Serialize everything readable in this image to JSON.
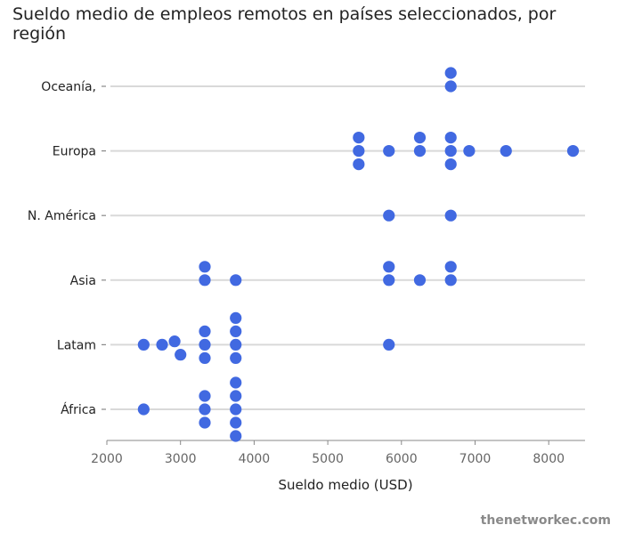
{
  "chart_data": {
    "type": "scatter",
    "title": "Sueldo medio de empleos remotos en países seleccionados, por región",
    "xlabel": "Sueldo medio (USD)",
    "ylabel": "",
    "xlim": [
      2000,
      8600
    ],
    "xticks": [
      2000,
      3000,
      4000,
      5000,
      6000,
      7000,
      8000
    ],
    "grid": "horizontal lines at each category",
    "categories": [
      "Oceanía,",
      "Europa",
      "N. América",
      "Asia",
      "Latam",
      "África"
    ],
    "series": [
      {
        "category": "Oceanía,",
        "points": [
          {
            "x": 6670,
            "slot": 0
          },
          {
            "x": 6670,
            "slot": 1
          }
        ]
      },
      {
        "category": "Europa",
        "points": [
          {
            "x": 5420,
            "slot": 0
          },
          {
            "x": 5420,
            "slot": 1
          },
          {
            "x": 5420,
            "slot": -1
          },
          {
            "x": 5830,
            "slot": 0
          },
          {
            "x": 6250,
            "slot": 0
          },
          {
            "x": 6250,
            "slot": 1
          },
          {
            "x": 6670,
            "slot": 0
          },
          {
            "x": 6670,
            "slot": 1
          },
          {
            "x": 6670,
            "slot": -1
          },
          {
            "x": 6920,
            "slot": 0
          },
          {
            "x": 7420,
            "slot": 0
          },
          {
            "x": 8330,
            "slot": 0
          }
        ]
      },
      {
        "category": "N. América",
        "points": [
          {
            "x": 5830,
            "slot": 0
          },
          {
            "x": 6670,
            "slot": 0
          }
        ]
      },
      {
        "category": "Asia",
        "points": [
          {
            "x": 3330,
            "slot": 0
          },
          {
            "x": 3330,
            "slot": 1
          },
          {
            "x": 3750,
            "slot": 0
          },
          {
            "x": 5830,
            "slot": 0
          },
          {
            "x": 5830,
            "slot": 1
          },
          {
            "x": 6250,
            "slot": 0
          },
          {
            "x": 6670,
            "slot": 0
          },
          {
            "x": 6670,
            "slot": 1
          }
        ]
      },
      {
        "category": "Latam",
        "points": [
          {
            "x": 2500,
            "slot": 0
          },
          {
            "x": 2750,
            "slot": 0
          },
          {
            "x": 2920,
            "slot": 0.25
          },
          {
            "x": 3000,
            "slot": -0.75
          },
          {
            "x": 3330,
            "slot": 0
          },
          {
            "x": 3330,
            "slot": 1
          },
          {
            "x": 3330,
            "slot": -1
          },
          {
            "x": 3750,
            "slot": 0
          },
          {
            "x": 3750,
            "slot": 1
          },
          {
            "x": 3750,
            "slot": 2
          },
          {
            "x": 3750,
            "slot": -1
          },
          {
            "x": 5830,
            "slot": 0
          }
        ]
      },
      {
        "category": "África",
        "points": [
          {
            "x": 2500,
            "slot": 0
          },
          {
            "x": 3330,
            "slot": 0
          },
          {
            "x": 3330,
            "slot": 1
          },
          {
            "x": 3330,
            "slot": -1
          },
          {
            "x": 3750,
            "slot": 0
          },
          {
            "x": 3750,
            "slot": 1
          },
          {
            "x": 3750,
            "slot": 2
          },
          {
            "x": 3750,
            "slot": -1
          },
          {
            "x": 3750,
            "slot": -2
          }
        ]
      }
    ]
  },
  "colors": {
    "dot": "#4169E1",
    "gridline": "#d9d9d9",
    "axis": "#888888"
  },
  "source": "thenetworkec.com"
}
